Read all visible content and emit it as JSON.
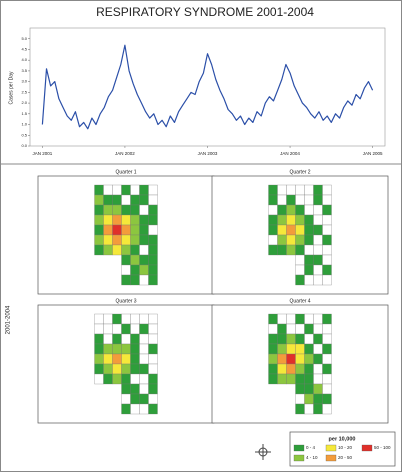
{
  "chart_data": {
    "type": "line",
    "title": "RESPIRATORY SYNDROME  2001-2004",
    "y_label": "Cases per Day",
    "color": "#2b4fa8",
    "x": [
      2001.0,
      2001.05,
      2001.1,
      2001.15,
      2001.2,
      2001.25,
      2001.3,
      2001.35,
      2001.4,
      2001.45,
      2001.5,
      2001.55,
      2001.6,
      2001.65,
      2001.7,
      2001.75,
      2001.8,
      2001.85,
      2001.9,
      2001.95,
      2002.0,
      2002.05,
      2002.1,
      2002.15,
      2002.2,
      2002.25,
      2002.3,
      2002.35,
      2002.4,
      2002.45,
      2002.5,
      2002.55,
      2002.6,
      2002.65,
      2002.7,
      2002.75,
      2002.8,
      2002.85,
      2002.9,
      2002.95,
      2003.0,
      2003.05,
      2003.1,
      2003.15,
      2003.2,
      2003.25,
      2003.3,
      2003.35,
      2003.4,
      2003.45,
      2003.5,
      2003.55,
      2003.6,
      2003.65,
      2003.7,
      2003.75,
      2003.8,
      2003.85,
      2003.9,
      2003.95,
      2004.0,
      2004.05,
      2004.1,
      2004.15,
      2004.2,
      2004.25,
      2004.3,
      2004.35,
      2004.4,
      2004.45,
      2004.5,
      2004.55,
      2004.6,
      2004.65,
      2004.7,
      2004.75,
      2004.8,
      2004.85,
      2004.9,
      2004.95,
      2005.0
    ],
    "values": [
      1.0,
      3.6,
      2.8,
      3.0,
      2.2,
      1.8,
      1.4,
      1.2,
      1.6,
      0.9,
      1.1,
      0.8,
      1.3,
      1.0,
      1.5,
      1.8,
      2.3,
      2.6,
      3.2,
      3.8,
      4.7,
      3.5,
      2.9,
      2.4,
      2.0,
      1.6,
      1.3,
      1.5,
      1.0,
      1.2,
      0.9,
      1.4,
      1.1,
      1.6,
      1.9,
      2.2,
      2.5,
      2.4,
      3.0,
      3.4,
      4.3,
      3.8,
      3.1,
      2.6,
      2.2,
      1.7,
      1.5,
      1.2,
      1.4,
      1.0,
      1.3,
      1.1,
      1.6,
      1.4,
      2.0,
      2.3,
      2.1,
      2.6,
      3.1,
      3.8,
      3.4,
      2.8,
      2.4,
      2.0,
      1.8,
      1.5,
      1.3,
      1.6,
      1.2,
      1.4,
      1.1,
      1.5,
      1.3,
      1.8,
      2.1,
      1.9,
      2.4,
      2.2,
      2.7,
      3.0,
      2.6
    ],
    "xlim": [
      2000.85,
      2005.15
    ],
    "xticks": [
      {
        "value": 2001,
        "label": "JAN 2001"
      },
      {
        "value": 2002,
        "label": "JAN 2002"
      },
      {
        "value": 2003,
        "label": "JAN 2003"
      },
      {
        "value": 2004,
        "label": "JAN 2004"
      },
      {
        "value": 2005,
        "label": "JAN 2005"
      }
    ],
    "ylim": [
      0,
      5.5
    ],
    "yticks": [
      {
        "value": 0,
        "label": "0.0"
      },
      0.5,
      {
        "value": 1,
        "label": "1.0"
      },
      1.5,
      {
        "value": 2,
        "label": "2.0"
      },
      2.5,
      {
        "value": 3,
        "label": "3.0"
      },
      3.5,
      {
        "value": 4,
        "label": "4.0"
      },
      4.5,
      {
        "value": 5,
        "label": "5.0"
      }
    ]
  },
  "maps": {
    "side_label": "2001-2004",
    "panels": [
      {
        "title": "Quarter 1",
        "cells": [
          [
            1,
            0,
            0,
            1,
            0,
            1,
            0
          ],
          [
            2,
            1,
            1,
            0,
            1,
            1,
            0
          ],
          [
            1,
            2,
            2,
            1,
            1,
            0,
            1
          ],
          [
            2,
            3,
            4,
            3,
            2,
            1,
            1
          ],
          [
            1,
            4,
            5,
            4,
            2,
            1,
            0
          ],
          [
            2,
            3,
            4,
            3,
            2,
            1,
            1
          ],
          [
            1,
            2,
            3,
            2,
            1,
            0,
            1
          ],
          [
            1,
            2,
            1,
            1
          ],
          [
            0,
            1,
            2,
            1
          ],
          [
            1,
            1,
            0,
            1
          ]
        ]
      },
      {
        "title": "Quarter 2",
        "cells": [
          [
            1,
            0,
            0,
            0,
            0,
            1,
            0
          ],
          [
            1,
            0,
            1,
            0,
            0,
            1,
            0
          ],
          [
            0,
            1,
            2,
            1,
            0,
            0,
            1
          ],
          [
            1,
            2,
            3,
            2,
            1,
            0,
            0
          ],
          [
            1,
            3,
            4,
            3,
            1,
            1,
            0
          ],
          [
            0,
            2,
            3,
            2,
            1,
            0,
            1
          ],
          [
            1,
            1,
            2,
            1,
            0,
            0,
            0
          ],
          [
            0,
            1,
            1,
            0
          ],
          [
            0,
            1,
            0,
            1
          ],
          [
            1,
            0,
            0,
            0
          ]
        ]
      },
      {
        "title": "Quarter 3",
        "cells": [
          [
            0,
            0,
            1,
            0,
            0,
            0,
            0
          ],
          [
            0,
            0,
            0,
            1,
            0,
            1,
            0
          ],
          [
            1,
            0,
            1,
            0,
            1,
            0,
            0
          ],
          [
            1,
            2,
            2,
            2,
            1,
            0,
            1
          ],
          [
            2,
            3,
            4,
            3,
            1,
            0,
            0
          ],
          [
            1,
            2,
            3,
            2,
            1,
            1,
            0
          ],
          [
            0,
            1,
            2,
            1,
            0,
            0,
            1
          ],
          [
            1,
            1,
            0,
            1
          ],
          [
            0,
            1,
            1,
            0
          ],
          [
            1,
            0,
            0,
            1
          ]
        ]
      },
      {
        "title": "Quarter 4",
        "cells": [
          [
            1,
            0,
            0,
            1,
            0,
            0,
            1
          ],
          [
            0,
            1,
            0,
            0,
            1,
            0,
            0
          ],
          [
            1,
            1,
            2,
            1,
            0,
            1,
            0
          ],
          [
            1,
            2,
            3,
            3,
            1,
            0,
            1
          ],
          [
            2,
            4,
            5,
            3,
            2,
            1,
            0
          ],
          [
            1,
            3,
            4,
            2,
            1,
            0,
            1
          ],
          [
            1,
            2,
            2,
            1,
            1,
            0,
            0
          ],
          [
            1,
            1,
            2,
            0
          ],
          [
            0,
            2,
            1,
            1
          ],
          [
            1,
            0,
            1,
            0
          ]
        ]
      }
    ],
    "legend": {
      "title": "per 10,000",
      "none_color": "#ffffff",
      "classes": [
        {
          "label": "0 - 4",
          "color": "#2e9e3a"
        },
        {
          "label": "4 - 10",
          "color": "#8cc63f"
        },
        {
          "label": "10 - 20",
          "color": "#f5e83a"
        },
        {
          "label": "20 - 50",
          "color": "#f39c3b"
        },
        {
          "label": "50 - 100",
          "color": "#e0302a"
        }
      ]
    }
  }
}
